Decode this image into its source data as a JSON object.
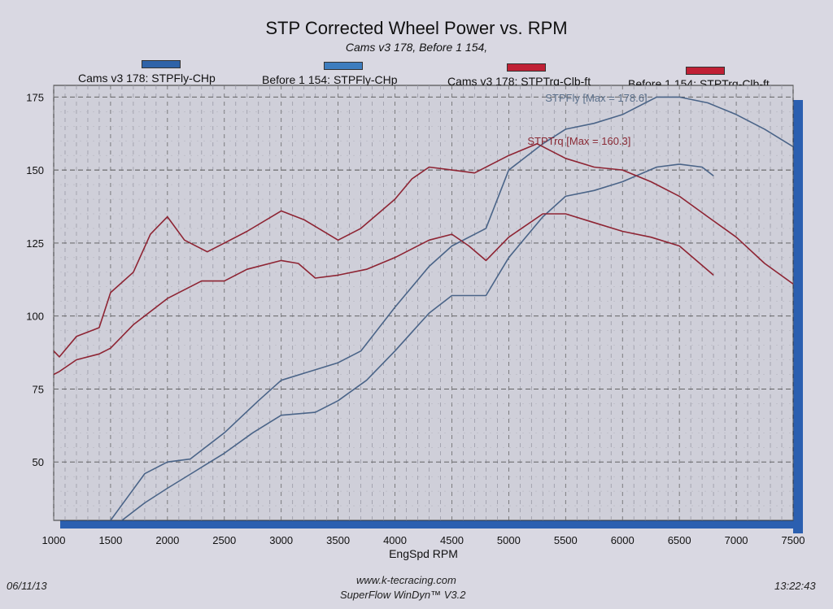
{
  "footer": {
    "date": "06/11/13",
    "website": "www.k-tecracing.com",
    "software": "SuperFlow WinDyn™ V3.2",
    "time": "13:22:43"
  },
  "chart_data": {
    "type": "line",
    "title": "STP Corrected Wheel Power vs. RPM",
    "subtitle": "Cams v3 178, Before 1 154,",
    "xlabel": "EngSpd RPM",
    "ylabel": "",
    "xlim": [
      1000,
      7500
    ],
    "ylim": [
      30,
      179
    ],
    "xticks": [
      1000,
      1500,
      2000,
      2500,
      3000,
      3500,
      4000,
      4500,
      5000,
      5500,
      6000,
      6500,
      7000,
      7500
    ],
    "yticks": [
      50,
      75,
      100,
      125,
      150,
      175
    ],
    "grid": true,
    "legend_placement": "top",
    "annotations": [
      {
        "text": "STPFly [Max = 178.6]",
        "color": "#5a6f8a",
        "x": 6000,
        "y": 176
      },
      {
        "text": "STPTrq [Max = 160.3]",
        "color": "#8a2a35",
        "x": 5200,
        "y": 159
      }
    ],
    "series": [
      {
        "name": "Cams v3 178: STPFly-CHp",
        "color": "#4a6488",
        "swatch": "#2f63a8",
        "x": [
          1500,
          1650,
          1800,
          2000,
          2200,
          2500,
          2800,
          3000,
          3250,
          3500,
          3700,
          4000,
          4300,
          4500,
          4800,
          5000,
          5300,
          5500,
          5750,
          6000,
          6300,
          6500,
          6750,
          7000,
          7250,
          7500
        ],
        "y": [
          30,
          38,
          46,
          50,
          51,
          60,
          71,
          78,
          81,
          84,
          88,
          103,
          117,
          124,
          130,
          150,
          159,
          164,
          166,
          169,
          175,
          175,
          173,
          169,
          164,
          158
        ]
      },
      {
        "name": "Before 1 154: STPFly-CHp",
        "color": "#4a6488",
        "swatch": "#3d7dbf",
        "x": [
          1600,
          1800,
          2000,
          2250,
          2500,
          2750,
          3000,
          3300,
          3500,
          3750,
          4000,
          4300,
          4500,
          4800,
          5000,
          5300,
          5500,
          5750,
          6000,
          6300,
          6500,
          6700,
          6800
        ],
        "y": [
          30,
          36,
          41,
          47,
          53,
          60,
          66,
          67,
          71,
          78,
          88,
          101,
          107,
          107,
          120,
          134,
          141,
          143,
          146,
          151,
          152,
          151,
          148
        ]
      },
      {
        "name": "Cams v3 178: STPTrq-Clb-ft",
        "color": "#8e2433",
        "swatch": "#c02035",
        "x": [
          1000,
          1050,
          1200,
          1400,
          1500,
          1700,
          1850,
          2000,
          2150,
          2350,
          2500,
          2700,
          3000,
          3200,
          3500,
          3700,
          4000,
          4150,
          4300,
          4500,
          4700,
          5000,
          5250,
          5500,
          5750,
          6000,
          6250,
          6500,
          6750,
          7000,
          7250,
          7500
        ],
        "y": [
          88,
          86,
          93,
          96,
          108,
          115,
          128,
          134,
          126,
          122,
          125,
          129,
          136,
          133,
          126,
          130,
          140,
          147,
          151,
          150,
          149,
          155,
          159,
          154,
          151,
          150,
          146,
          141,
          134,
          127,
          118,
          111
        ]
      },
      {
        "name": "Before 1 154: STPTrq-Clb-ft",
        "color": "#8e2433",
        "swatch": "#c02035",
        "x": [
          1000,
          1050,
          1200,
          1400,
          1500,
          1700,
          2000,
          2300,
          2500,
          2700,
          3000,
          3150,
          3300,
          3500,
          3750,
          4000,
          4300,
          4500,
          4650,
          4800,
          5000,
          5300,
          5500,
          5750,
          6000,
          6250,
          6500,
          6800
        ],
        "y": [
          80,
          81,
          85,
          87,
          89,
          97,
          106,
          112,
          112,
          116,
          119,
          118,
          113,
          114,
          116,
          120,
          126,
          128,
          124,
          119,
          127,
          135,
          135,
          132,
          129,
          127,
          124,
          114
        ]
      }
    ]
  }
}
